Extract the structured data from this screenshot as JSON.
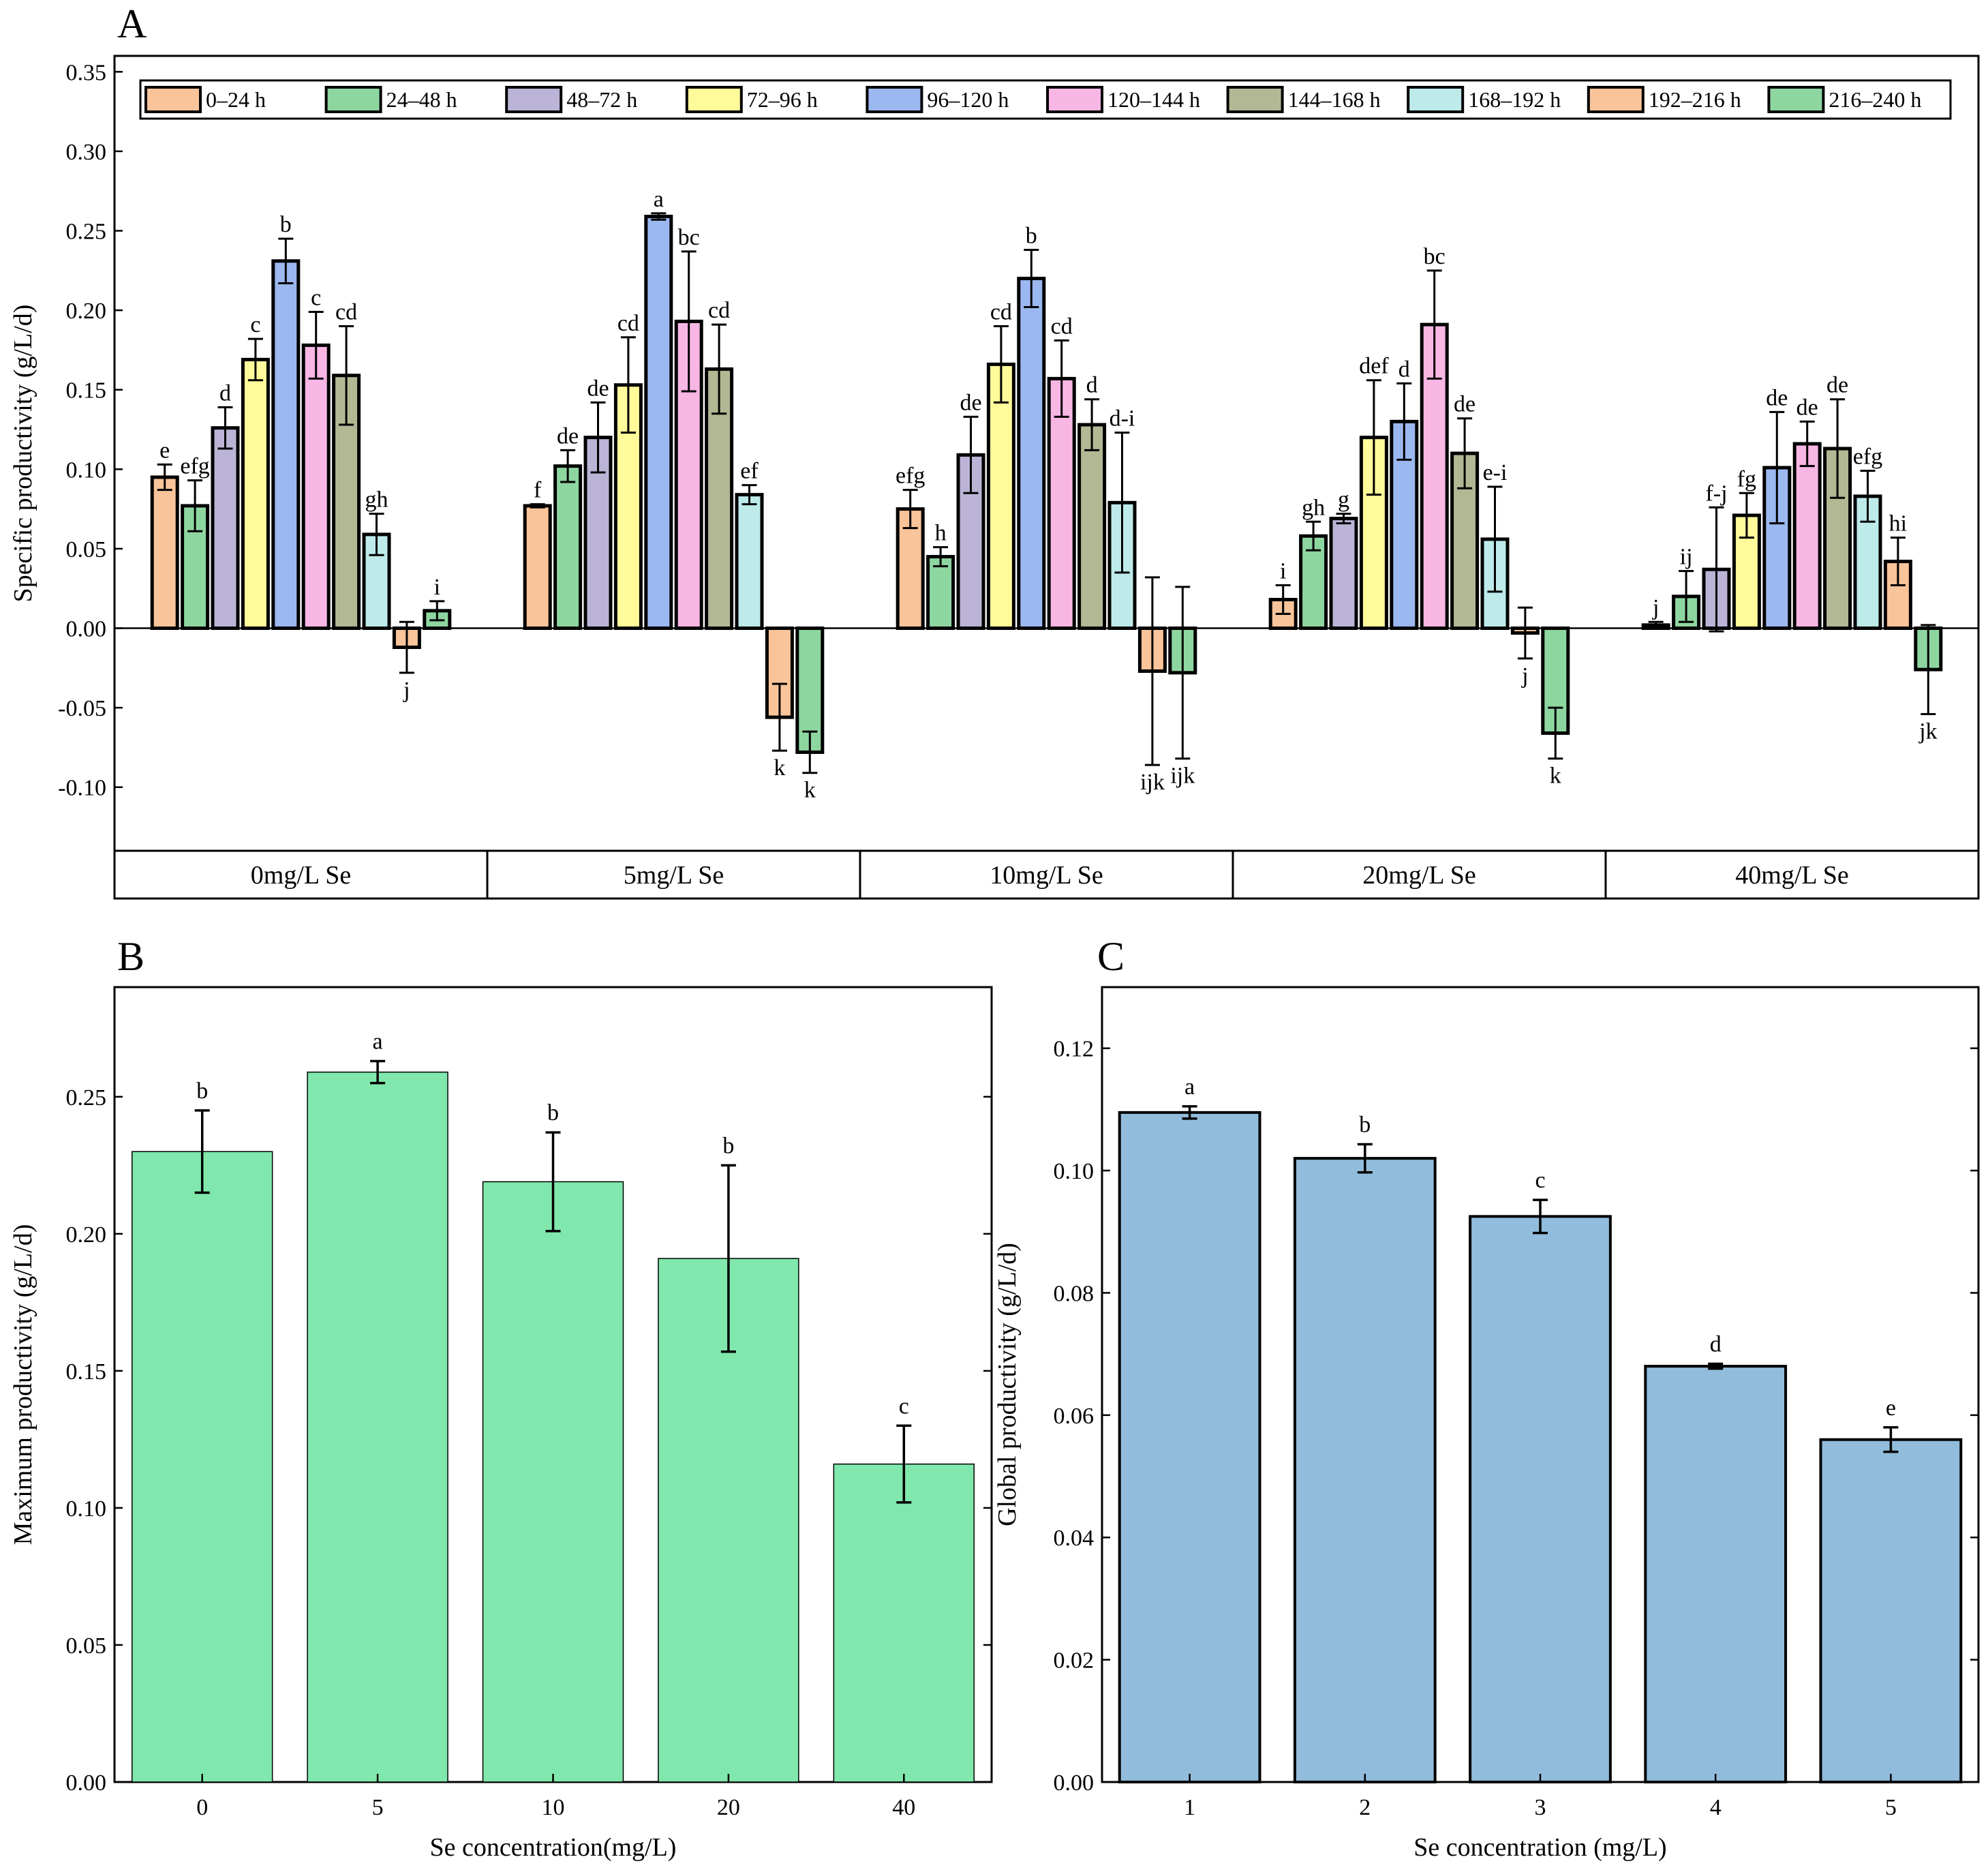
{
  "chart_data": [
    {
      "panel": "A",
      "type": "bar",
      "ylabel": "Specific productivity (g/L/d)",
      "ylim": [
        -0.14,
        0.36
      ],
      "yticks": [
        -0.1,
        -0.05,
        0.0,
        0.05,
        0.1,
        0.15,
        0.2,
        0.25,
        0.3,
        0.35
      ],
      "ytick_labels": [
        "-0.10",
        "-0.05",
        "0.00",
        "0.05",
        "0.10",
        "0.15",
        "0.20",
        "0.25",
        "0.30",
        "0.35"
      ],
      "legend_position": "top",
      "categories": [
        "0mg/L Se",
        "5mg/L Se",
        "10mg/L Se",
        "20mg/L Se",
        "40mg/L Se"
      ],
      "series": [
        {
          "name": "0–24 h",
          "color": "#F9C49A",
          "values": [
            0.095,
            0.077,
            0.075,
            0.018,
            0.002
          ],
          "errors": [
            0.008,
            0.001,
            0.012,
            0.009,
            0.002
          ],
          "letters": [
            "e",
            "f",
            "efg",
            "i",
            "j"
          ]
        },
        {
          "name": "24–48 h",
          "color": "#8ED6A0",
          "values": [
            0.077,
            0.102,
            0.045,
            0.058,
            0.02
          ],
          "errors": [
            0.016,
            0.01,
            0.006,
            0.009,
            0.016
          ],
          "letters": [
            "efg",
            "de",
            "h",
            "gh",
            "ij"
          ]
        },
        {
          "name": "48–72 h",
          "color": "#BCB4D6",
          "values": [
            0.126,
            0.12,
            0.109,
            0.069,
            0.037
          ],
          "errors": [
            0.013,
            0.022,
            0.024,
            0.003,
            0.039
          ],
          "letters": [
            "d",
            "de",
            "de",
            "g",
            "f-j"
          ]
        },
        {
          "name": "72–96 h",
          "color": "#FFFA9A",
          "values": [
            0.169,
            0.153,
            0.166,
            0.12,
            0.071
          ],
          "errors": [
            0.013,
            0.03,
            0.024,
            0.036,
            0.014
          ],
          "letters": [
            "c",
            "cd",
            "cd",
            "def",
            "fg"
          ]
        },
        {
          "name": "96–120 h",
          "color": "#9CB8F0",
          "values": [
            0.231,
            0.259,
            0.22,
            0.13,
            0.101
          ],
          "errors": [
            0.014,
            0.002,
            0.018,
            0.024,
            0.035
          ],
          "letters": [
            "b",
            "a",
            "b",
            "d",
            "de"
          ]
        },
        {
          "name": "120–144 h",
          "color": "#F8B6E4",
          "values": [
            0.178,
            0.193,
            0.157,
            0.191,
            0.116
          ],
          "errors": [
            0.021,
            0.044,
            0.024,
            0.034,
            0.014
          ],
          "letters": [
            "c",
            "bc",
            "cd",
            "bc",
            "de"
          ]
        },
        {
          "name": "144–168 h",
          "color": "#B3B894",
          "values": [
            0.159,
            0.163,
            0.128,
            0.11,
            0.113
          ],
          "errors": [
            0.031,
            0.028,
            0.016,
            0.022,
            0.031
          ],
          "letters": [
            "cd",
            "cd",
            "d",
            "de",
            "de"
          ]
        },
        {
          "name": "168–192 h",
          "color": "#BEEAEA",
          "values": [
            0.059,
            0.084,
            0.079,
            0.056,
            0.083
          ],
          "errors": [
            0.013,
            0.006,
            0.044,
            0.033,
            0.016
          ],
          "letters": [
            "gh",
            "ef",
            "d-i",
            "e-i",
            "efg"
          ]
        },
        {
          "name": "192–216 h",
          "color": "#F9C49A",
          "values": [
            -0.012,
            -0.056,
            -0.027,
            -0.003,
            0.042
          ],
          "errors": [
            0.016,
            0.021,
            0.059,
            0.016,
            0.015
          ],
          "letters": [
            "j",
            "k",
            "ijk",
            "j",
            "hi"
          ]
        },
        {
          "name": "216–240 h",
          "color": "#8ED6A0",
          "values": [
            0.011,
            -0.078,
            -0.028,
            -0.066,
            -0.026
          ],
          "errors": [
            0.006,
            0.013,
            0.054,
            0.016,
            0.028
          ],
          "letters": [
            "i",
            "k",
            "ijk",
            "k",
            "jk"
          ]
        }
      ]
    },
    {
      "panel": "B",
      "type": "bar",
      "xlabel": "Se concentration(mg/L)",
      "ylabel": "Maximum productivity (g/L/d)",
      "ylim": [
        0,
        0.29
      ],
      "yticks": [
        0.0,
        0.05,
        0.1,
        0.15,
        0.2,
        0.25
      ],
      "ytick_labels": [
        "0.00",
        "0.05",
        "0.10",
        "0.15",
        "0.20",
        "0.25"
      ],
      "categories": [
        "0",
        "5",
        "10",
        "20",
        "40"
      ],
      "values": [
        0.23,
        0.259,
        0.219,
        0.191,
        0.116
      ],
      "errors": [
        0.015,
        0.004,
        0.018,
        0.034,
        0.014
      ],
      "letters": [
        "b",
        "a",
        "b",
        "b",
        "c"
      ],
      "color": "#80E8AC"
    },
    {
      "panel": "C",
      "type": "bar",
      "xlabel": "Se concentration (mg/L)",
      "ylabel": "Global productivity (g/L/d)",
      "ylim": [
        0,
        0.13
      ],
      "yticks": [
        0.0,
        0.02,
        0.04,
        0.06,
        0.08,
        0.1,
        0.12
      ],
      "ytick_labels": [
        "0.00",
        "0.02",
        "0.04",
        "0.06",
        "0.08",
        "0.10",
        "0.12"
      ],
      "categories": [
        "1",
        "2",
        "3",
        "4",
        "5"
      ],
      "values": [
        0.1095,
        0.102,
        0.0925,
        0.068,
        0.056
      ],
      "errors": [
        0.001,
        0.0023,
        0.0027,
        0.0004,
        0.002
      ],
      "letters": [
        "a",
        "b",
        "c",
        "d",
        "e"
      ],
      "color": "#92BCDB"
    }
  ]
}
